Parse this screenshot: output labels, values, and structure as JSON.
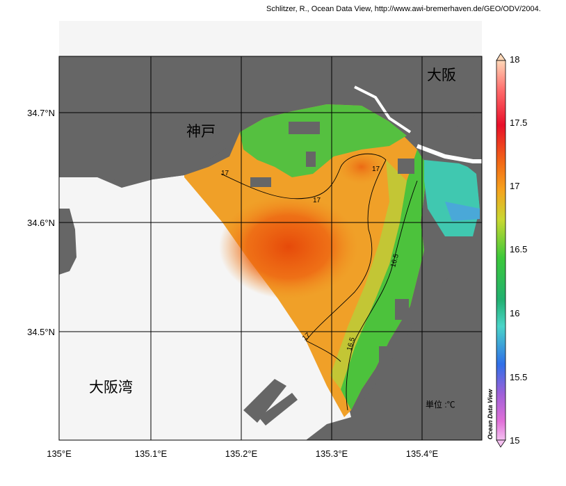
{
  "credit": "Schlitzer, R., Ocean Data View, http://www.awi-bremerhaven.de/GEO/ODV/2004.",
  "map": {
    "lon_ticks": [
      "135°E",
      "135.1°E",
      "135.2°E",
      "135.3°E",
      "135.4°E"
    ],
    "lat_ticks": [
      "34.7°N",
      "34.6°N",
      "34.5°N"
    ],
    "lon_range": [
      135.0,
      135.47
    ],
    "lat_range": [
      34.4,
      34.75
    ],
    "places": [
      {
        "name": "kobe",
        "label": "神戸"
      },
      {
        "name": "osaka",
        "label": "大阪"
      },
      {
        "name": "osaka-bay",
        "label": "大阪湾"
      }
    ],
    "unit_label": "単位 :℃",
    "contour_labels": [
      "17",
      "17",
      "17",
      "16.5",
      "17",
      "16.5"
    ],
    "land_color": "#666666",
    "empty_water_color": "#f5f5f5"
  },
  "colorbar": {
    "ticks": [
      "18",
      "17.5",
      "17",
      "16.5",
      "16",
      "15.5",
      "15"
    ],
    "min": 15,
    "max": 18,
    "title": "Ocean Data View"
  }
}
